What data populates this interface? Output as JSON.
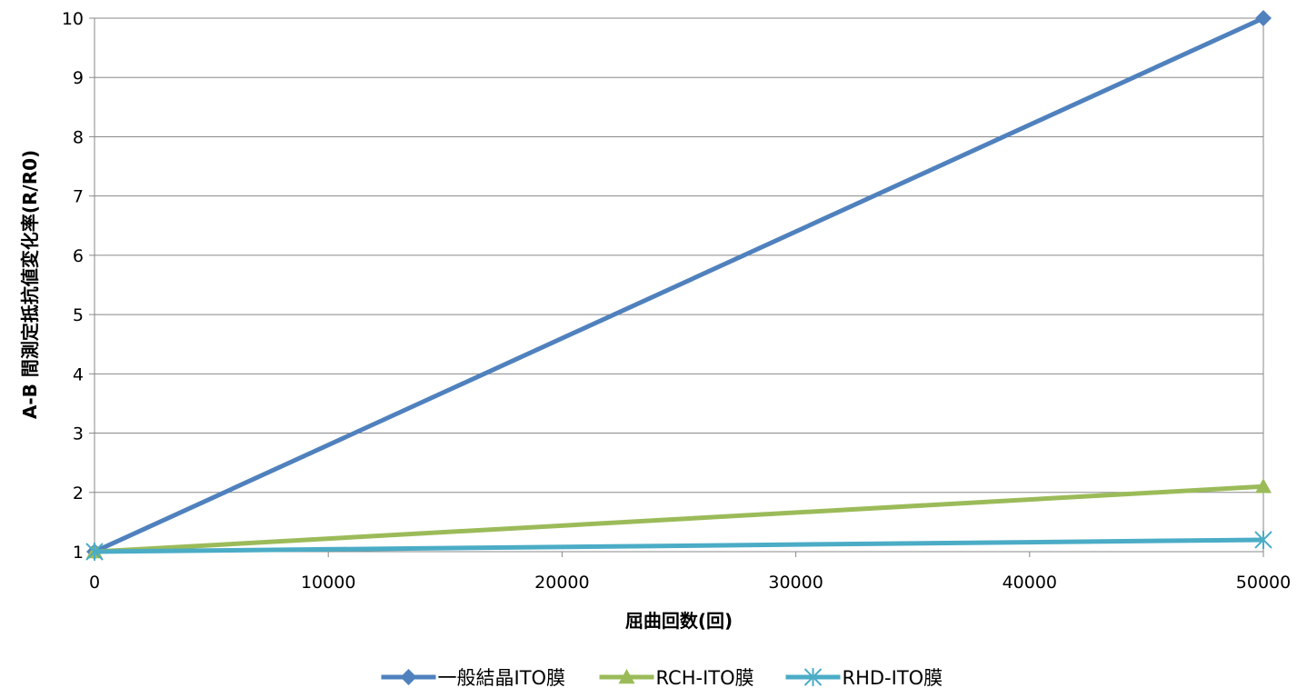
{
  "chart_data": {
    "type": "line",
    "title": "",
    "xlabel": "屈曲回数(回)",
    "ylabel": "A-B 間測定抵抗値変化率(R/R0)",
    "x": [
      0,
      50000
    ],
    "xlim": [
      0,
      50000
    ],
    "ylim": [
      1,
      10
    ],
    "x_ticks": [
      0,
      10000,
      20000,
      30000,
      40000,
      50000
    ],
    "y_ticks": [
      1,
      2,
      3,
      4,
      5,
      6,
      7,
      8,
      9,
      10
    ],
    "grid": "horizontal",
    "legend_position": "bottom",
    "series": [
      {
        "name": "一般結晶ITO膜",
        "values": [
          1,
          10
        ],
        "color": "#4f81bd",
        "marker": "diamond"
      },
      {
        "name": "RCH-ITO膜",
        "values": [
          1,
          2.1
        ],
        "color": "#9bbb59",
        "marker": "triangle"
      },
      {
        "name": "RHD-ITO膜",
        "values": [
          1,
          1.2
        ],
        "color": "#4bacc6",
        "marker": "asterisk"
      }
    ]
  }
}
